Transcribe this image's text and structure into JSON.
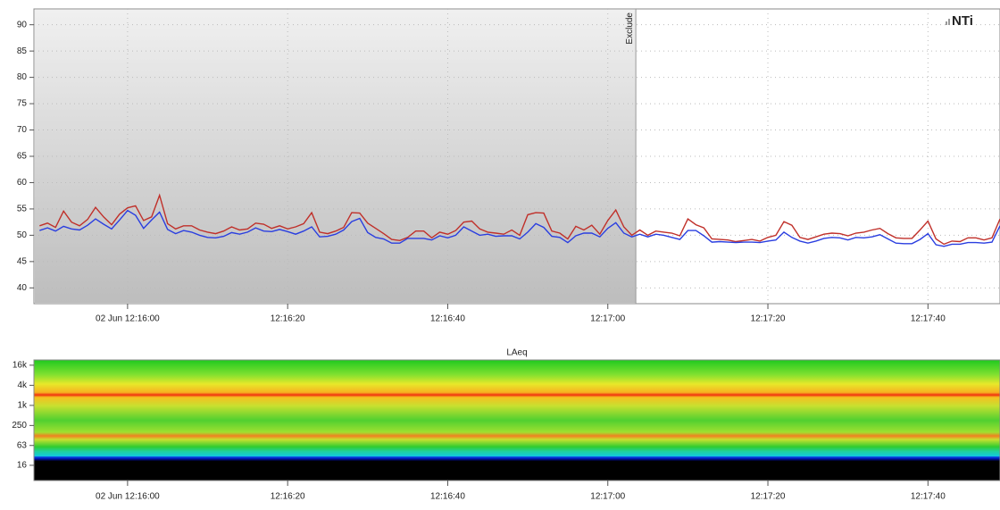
{
  "chart_data": [
    {
      "type": "line",
      "logo": "NTi",
      "exclude_region": {
        "label": "Exclude",
        "end": 63.5
      },
      "x": [
        -11,
        -10,
        -9,
        -8,
        -7,
        -6,
        -5,
        -4,
        -3,
        -2,
        -1,
        0,
        1,
        2,
        3,
        4,
        5,
        6,
        7,
        8,
        9,
        10,
        11,
        12,
        13,
        14,
        15,
        16,
        17,
        18,
        19,
        20,
        21,
        22,
        23,
        24,
        25,
        26,
        27,
        28,
        29,
        30,
        31,
        32,
        33,
        34,
        35,
        36,
        37,
        38,
        39,
        40,
        41,
        42,
        43,
        44,
        45,
        46,
        47,
        48,
        49,
        50,
        51,
        52,
        53,
        54,
        55,
        56,
        57,
        58,
        59,
        60,
        61,
        62,
        63,
        64,
        65,
        66,
        67,
        68,
        69,
        70,
        71,
        72,
        73,
        74,
        75,
        76,
        77,
        78,
        79,
        80,
        81,
        82,
        83,
        84,
        85,
        86,
        87,
        88,
        89,
        90,
        91,
        92,
        93,
        94,
        95,
        96,
        97,
        98,
        99,
        100,
        101,
        102,
        103,
        104,
        105,
        106,
        107,
        108,
        109
      ],
      "series": [
        {
          "color": "#c0302a",
          "values": [
            51.8,
            52.3,
            51.5,
            54.6,
            52.5,
            51.8,
            53,
            55.3,
            53.5,
            52,
            54,
            55.2,
            55.6,
            52.8,
            53.5,
            57.6,
            52.2,
            51.2,
            51.8,
            51.8,
            51,
            50.6,
            50.3,
            50.8,
            51.6,
            51,
            51.2,
            52.3,
            52.1,
            51.3,
            51.8,
            51.2,
            51.6,
            52.2,
            54.3,
            50.6,
            50.3,
            50.8,
            51.5,
            54.3,
            54.2,
            52.3,
            51.3,
            50.3,
            49.2,
            49,
            49.6,
            50.8,
            50.8,
            49.5,
            50.6,
            50.2,
            50.9,
            52.5,
            52.7,
            51.2,
            50.6,
            50.4,
            50.2,
            51,
            50,
            53.9,
            54.3,
            54.2,
            50.8,
            50.4,
            49.3,
            51.7,
            51,
            51.9,
            50.2,
            52.8,
            54.8,
            51.6,
            50,
            51,
            50,
            50.8,
            50.6,
            50.4,
            49.9,
            53.1,
            52,
            51.4,
            49.3,
            49.2,
            49.1,
            48.8,
            49,
            49.2,
            48.9,
            49.6,
            50,
            52.6,
            51.9,
            49.6,
            49.2,
            49.7,
            50.2,
            50.4,
            50.3,
            49.9,
            50.4,
            50.6,
            51,
            51.3,
            50.3,
            49.5,
            49.4,
            49.4,
            51,
            52.7,
            49.3,
            48.3,
            48.9,
            48.8,
            49.5,
            49.5,
            49.1,
            49.5,
            53.1
          ]
        },
        {
          "color": "#2a3ee0",
          "values": [
            50.9,
            51.4,
            50.8,
            51.7,
            51.2,
            51,
            51.9,
            53.1,
            52.1,
            51.2,
            52.9,
            54.7,
            53.8,
            51.3,
            52.9,
            54.4,
            51.1,
            50.3,
            50.9,
            50.6,
            50,
            49.6,
            49.5,
            49.8,
            50.5,
            50.2,
            50.6,
            51.4,
            50.8,
            50.7,
            51.1,
            50.7,
            50.2,
            50.8,
            51.6,
            49.7,
            49.8,
            50.2,
            51,
            52.6,
            53.2,
            50.5,
            49.6,
            49.3,
            48.5,
            48.5,
            49.4,
            49.4,
            49.4,
            49.1,
            49.9,
            49.5,
            50,
            51.6,
            50.8,
            50,
            50.2,
            49.8,
            49.9,
            49.9,
            49.3,
            50.6,
            52.2,
            51.5,
            49.8,
            49.6,
            48.6,
            49.9,
            50.4,
            50.4,
            49.7,
            51.3,
            52.4,
            50.4,
            49.7,
            50.2,
            49.7,
            50.2,
            50,
            49.6,
            49.2,
            50.9,
            50.9,
            49.9,
            48.7,
            48.8,
            48.7,
            48.6,
            48.7,
            48.7,
            48.6,
            48.9,
            49.1,
            50.6,
            49.6,
            48.9,
            48.5,
            48.9,
            49.4,
            49.6,
            49.5,
            49.1,
            49.6,
            49.5,
            49.7,
            50.1,
            49.3,
            48.5,
            48.4,
            48.4,
            49.2,
            50.3,
            48.2,
            47.9,
            48.3,
            48.3,
            48.6,
            48.6,
            48.5,
            48.7,
            51.8
          ]
        }
      ],
      "xlim": [
        -11.7,
        109
      ],
      "xticks": [
        {
          "value": 0,
          "label": "02 Jun 12:16:00"
        },
        {
          "value": 20,
          "label": "12:16:20"
        },
        {
          "value": 40,
          "label": "12:16:40"
        },
        {
          "value": 60,
          "label": "12:17:00"
        },
        {
          "value": 80,
          "label": "12:17:20"
        },
        {
          "value": 100,
          "label": "12:17:40"
        }
      ],
      "ylim": [
        37,
        93
      ],
      "yticks": [
        40,
        45,
        50,
        55,
        60,
        65,
        70,
        75,
        80,
        85,
        90
      ],
      "grid": true
    },
    {
      "type": "spectrogram",
      "title": "LAeq",
      "log_y": true,
      "xlim": [
        -11.7,
        109
      ],
      "xticks": [
        {
          "value": 0,
          "label": "02 Jun 12:16:00"
        },
        {
          "value": 20,
          "label": "12:16:20"
        },
        {
          "value": 40,
          "label": "12:16:40"
        },
        {
          "value": 60,
          "label": "12:17:00"
        },
        {
          "value": 80,
          "label": "12:17:20"
        },
        {
          "value": 100,
          "label": "12:17:40"
        }
      ],
      "ylim": [
        5.6,
        23000
      ],
      "yticks": [
        16,
        63,
        250,
        {
          "value": 1000,
          "label": "1k"
        },
        {
          "value": 4000,
          "label": "4k"
        },
        {
          "value": 16000,
          "label": "16k"
        }
      ]
    }
  ]
}
